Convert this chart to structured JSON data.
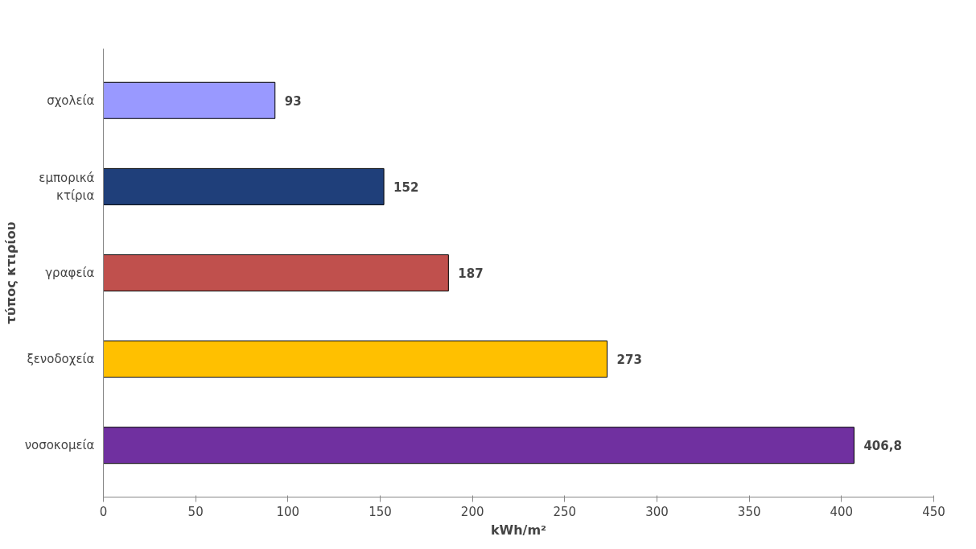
{
  "chart_data": {
    "type": "bar",
    "orientation": "horizontal",
    "xlabel": "kWh/m²",
    "ylabel": "τύπος κτιρίου",
    "categories": [
      "σχολεία",
      "εμπορικά\nκτίρια",
      "γραφεία",
      "ξενοδοχεία",
      "νοσοκομεία"
    ],
    "values": [
      93,
      152,
      187,
      273,
      406.8
    ],
    "value_labels": [
      "93",
      "152",
      "187",
      "273",
      "406,8"
    ],
    "colors": [
      "#9999ff",
      "#1f3f7a",
      "#c0504d",
      "#ffc000",
      "#7030a0"
    ],
    "xlim": [
      0,
      450
    ],
    "xticks": [
      0,
      50,
      100,
      150,
      200,
      250,
      300,
      350,
      400,
      450
    ],
    "grid": false
  }
}
